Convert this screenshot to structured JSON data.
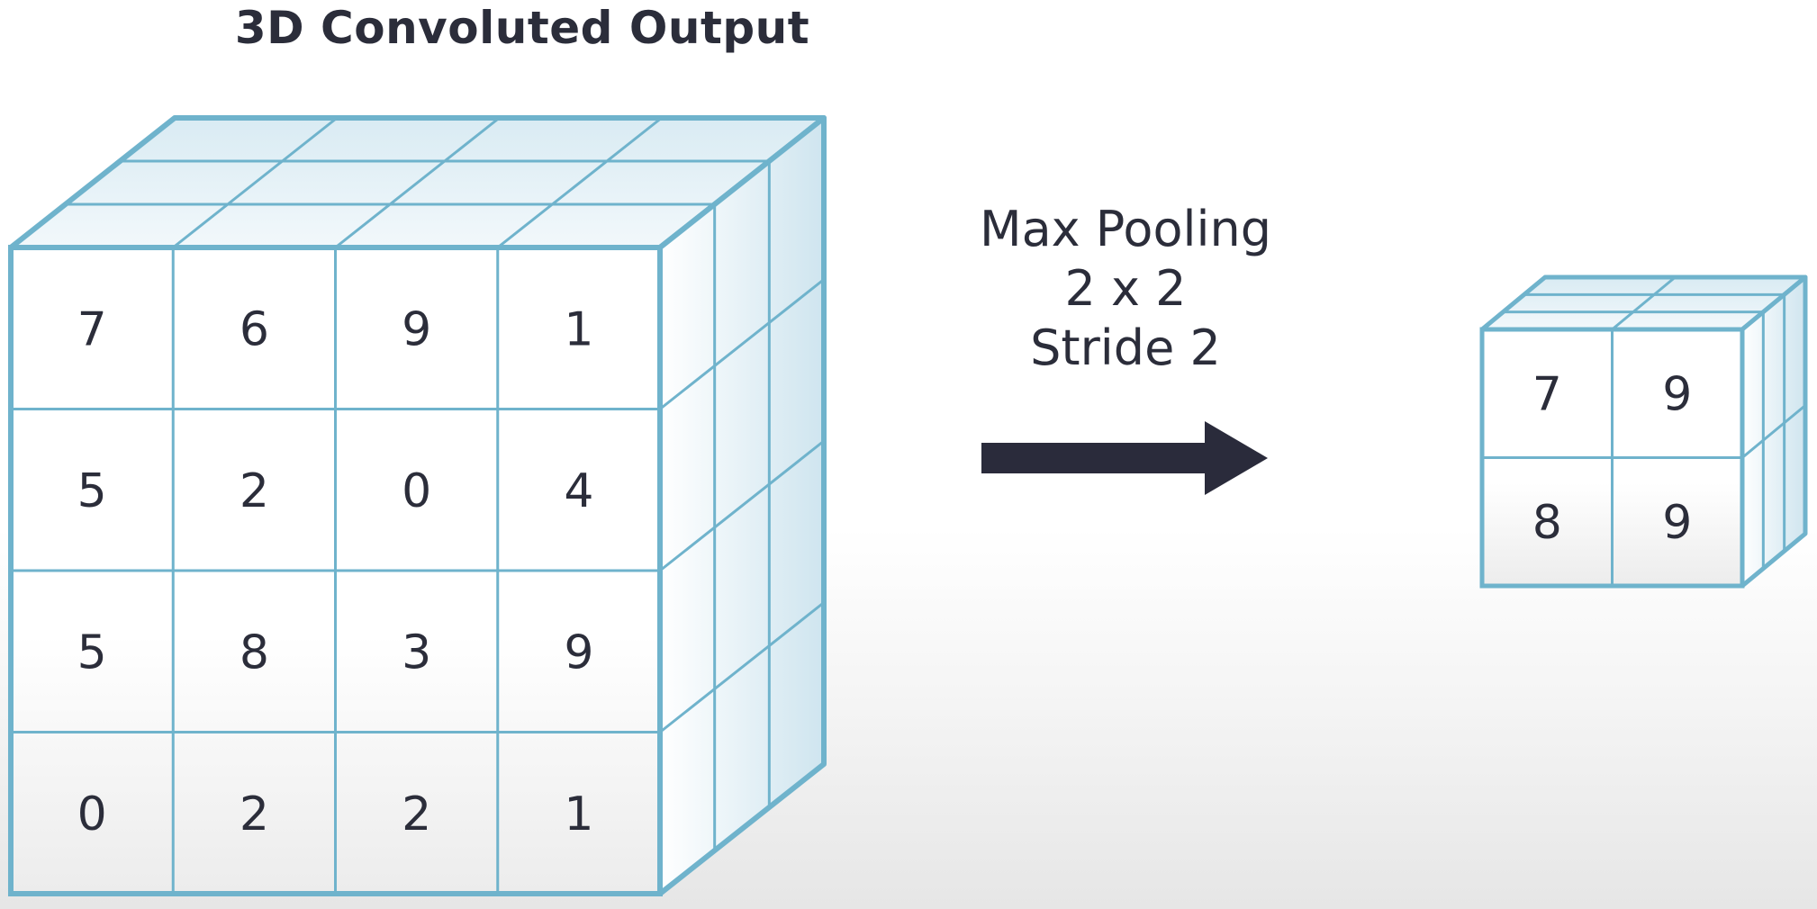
{
  "title": "3D Convoluted Output",
  "operation": {
    "line1": "Max Pooling",
    "line2": "2 x 2",
    "line3": "Stride 2"
  },
  "input_matrix": [
    [
      "7",
      "6",
      "9",
      "1"
    ],
    [
      "5",
      "2",
      "0",
      "4"
    ],
    [
      "5",
      "8",
      "3",
      "9"
    ],
    [
      "0",
      "2",
      "2",
      "1"
    ]
  ],
  "output_matrix": [
    [
      "7",
      "9"
    ],
    [
      "8",
      "9"
    ]
  ],
  "colors": {
    "grid_line": "#6fb3cc",
    "face_fill": "#ffffff",
    "side_fill": "#d6e9f2",
    "top_fill": "#e4f1f7",
    "arrow": "#2a2b3b",
    "text": "#2b2d3a"
  }
}
